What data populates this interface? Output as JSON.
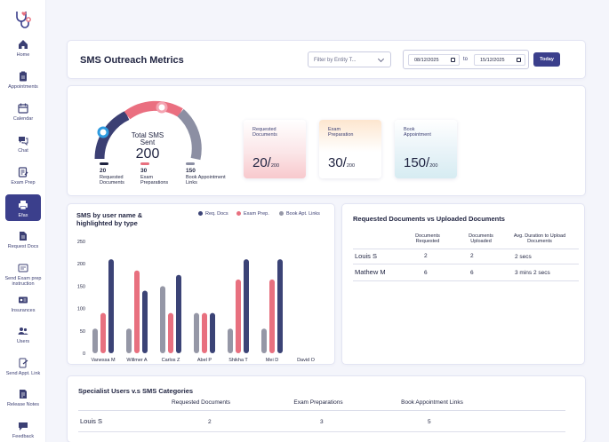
{
  "sidebar": {
    "items": [
      {
        "label": "Home",
        "icon": "home-icon"
      },
      {
        "label": "Appointments",
        "icon": "clipboard-icon"
      },
      {
        "label": "Calendar",
        "icon": "calendar-icon"
      },
      {
        "label": "Chat",
        "icon": "chat-icon"
      },
      {
        "label": "Exam Prep",
        "icon": "exam-prep-icon"
      },
      {
        "label": "Efax",
        "icon": "fax-icon"
      },
      {
        "label": "Request Docs",
        "icon": "request-docs-icon"
      },
      {
        "label": "Send Exam prep instruction",
        "icon": "send-instruction-icon"
      },
      {
        "label": "Insurances",
        "icon": "insurance-card-icon"
      },
      {
        "label": "Users",
        "icon": "users-icon"
      },
      {
        "label": "Send Appt. Link",
        "icon": "send-link-icon"
      },
      {
        "label": "Release Notes",
        "icon": "release-notes-icon"
      },
      {
        "label": "Feedback",
        "icon": "feedback-icon"
      }
    ],
    "active": "Efax"
  },
  "header": {
    "title": "SMS Outreach Metrics",
    "filter_placeholder": "Filter by Entity T...",
    "date_from": "08/12/2025",
    "date_sep": "to",
    "date_to": "15/12/2025",
    "today_label": "Today"
  },
  "gauge": {
    "label": "Total SMS Sent",
    "total": "200",
    "legend": [
      {
        "num": "20",
        "label": "Requested Documents",
        "color": "#3b3f73"
      },
      {
        "num": "30",
        "label": "Exam Preparations",
        "color": "#e8707f"
      },
      {
        "num": "150",
        "label": "Book Appointment Links",
        "color": "#8c8fa3"
      }
    ]
  },
  "metric_cards": [
    {
      "label": "Requested Documents",
      "value": "20/",
      "total": "200"
    },
    {
      "label": "Exam Preparation",
      "value": "30/",
      "total": "200"
    },
    {
      "label": "Book Appointment",
      "value": "150/",
      "total": "200"
    }
  ],
  "chart_data": {
    "type": "bar",
    "title": "SMS by user name & highlighted by type",
    "categories": [
      "Vanessa M",
      "Willmer A",
      "Carlos Z",
      "Abel P",
      "Shikha T",
      "Mei D",
      "David O"
    ],
    "series": [
      {
        "name": "Book Apt. Links",
        "color": "#9597a6",
        "values": [
          55,
          55,
          150,
          90,
          55,
          55,
          0
        ]
      },
      {
        "name": "Exam Prep.",
        "color": "#e8707f",
        "values": [
          90,
          185,
          90,
          90,
          165,
          165,
          0
        ]
      },
      {
        "name": "Req. Docs",
        "color": "#3b4376",
        "values": [
          210,
          140,
          175,
          90,
          210,
          210,
          0
        ]
      }
    ],
    "legend_order": [
      "Req. Docs",
      "Exam Prep.",
      "Book Apt. Links"
    ],
    "y_ticks": [
      "250",
      "200",
      "150",
      "100",
      "50",
      "0"
    ],
    "ylim": [
      0,
      250
    ],
    "legend_position": "top-right"
  },
  "docs_table": {
    "title": "Requested Documents vs Uploaded Documents",
    "headers": [
      "Documents Requested",
      "Documents Uploaded",
      "Avg. Duration to Upload Documents"
    ],
    "rows": [
      {
        "name": "Louis S",
        "requested": "2",
        "uploaded": "2",
        "duration": "2 secs"
      },
      {
        "name": "Mathew M",
        "requested": "6",
        "uploaded": "6",
        "duration": "3 mins 2 secs"
      }
    ]
  },
  "specialist_table": {
    "title": "Specialist Users v.s SMS Categories",
    "headers": [
      "Requested Documents",
      "Exam Preparations",
      "Book Appointment Links"
    ],
    "rows": [
      {
        "name": "Louis S",
        "requested": "2",
        "exam": "3",
        "book": "5"
      }
    ]
  }
}
